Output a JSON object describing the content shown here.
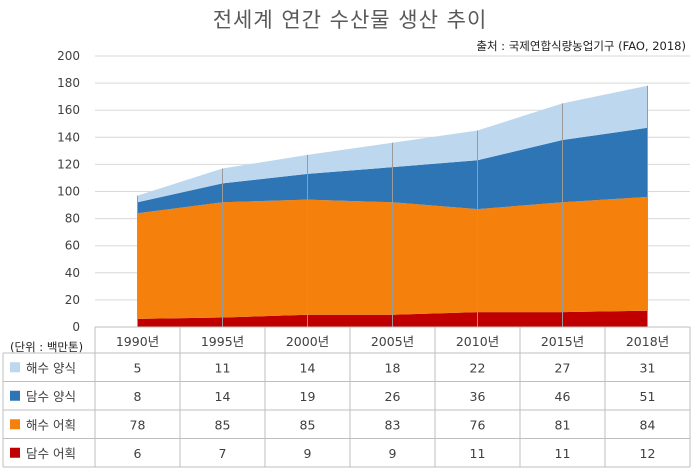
{
  "title": "전세계 연간 수산물 생산 추이",
  "source": "출처 : 국제연합식량농업기구 (FAO, 2018)",
  "unit_label": "(단위 : 백만톤)",
  "chart_data": {
    "type": "area",
    "stacked": true,
    "title": "전세계 연간 수산물 생산 추이",
    "categories": [
      "1990년",
      "1995년",
      "2000년",
      "2005년",
      "2010년",
      "2015년",
      "2018년"
    ],
    "ylim": [
      0,
      200
    ],
    "yticks": [
      0,
      20,
      40,
      60,
      80,
      100,
      120,
      140,
      160,
      180,
      200
    ],
    "grid": true,
    "series": [
      {
        "name": "담수 어획",
        "color": "#c00000",
        "values": [
          6,
          7,
          9,
          9,
          11,
          11,
          12
        ]
      },
      {
        "name": "해수 어획",
        "color": "#f5800b",
        "values": [
          78,
          85,
          85,
          83,
          76,
          81,
          84
        ]
      },
      {
        "name": "담수 양식",
        "color": "#2e75b6",
        "values": [
          8,
          14,
          19,
          26,
          36,
          46,
          51
        ]
      },
      {
        "name": "해수 양식",
        "color": "#bdd7ee",
        "values": [
          5,
          11,
          14,
          18,
          22,
          27,
          31
        ]
      }
    ],
    "table_order": [
      "해수 양식",
      "담수 양식",
      "해수 어획",
      "담수 어획"
    ]
  }
}
